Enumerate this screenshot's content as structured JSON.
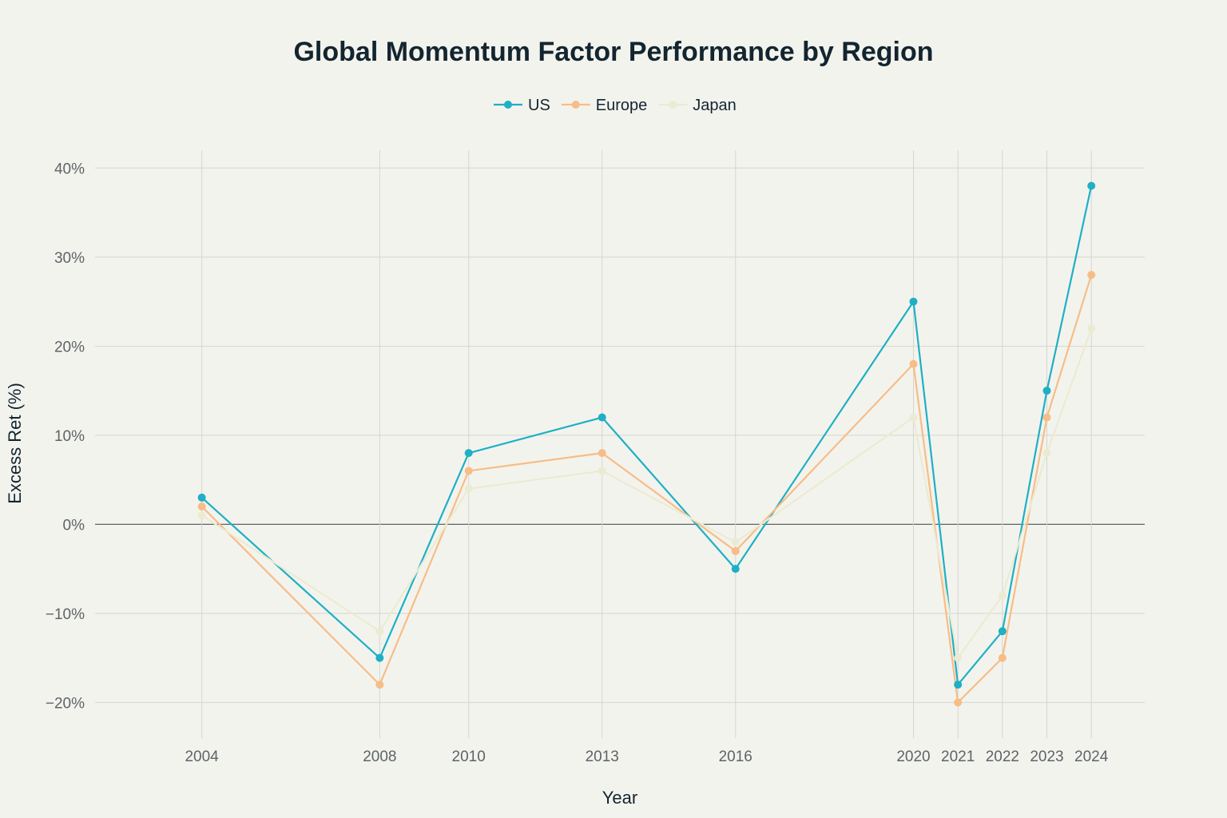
{
  "chart_data": {
    "type": "line",
    "title": "Global Momentum Factor Performance by Region",
    "xlabel": "Year",
    "ylabel": "Excess Ret (%)",
    "x": [
      2004,
      2008,
      2010,
      2013,
      2016,
      2020,
      2021,
      2022,
      2023,
      2024
    ],
    "x_tick_labels": [
      "2004",
      "2008",
      "2010",
      "2013",
      "2016",
      "2020",
      "2021",
      "2022",
      "2023",
      "2024"
    ],
    "xlim": [
      2001.6,
      2025.2
    ],
    "ylim": [
      -24,
      42
    ],
    "y_ticks": [
      -20,
      -10,
      0,
      10,
      20,
      30,
      40
    ],
    "y_tick_labels": [
      "−20%",
      "−10%",
      "0%",
      "10%",
      "20%",
      "30%",
      "40%"
    ],
    "grid": true,
    "legend_position": "top-center",
    "series": [
      {
        "name": "US",
        "color": "#1eb0c4",
        "values": [
          3,
          -15,
          8,
          12,
          -5,
          25,
          -18,
          -12,
          15,
          38
        ]
      },
      {
        "name": "Europe",
        "color": "#f7bd86",
        "values": [
          2,
          -18,
          6,
          8,
          -3,
          18,
          -20,
          -15,
          12,
          28
        ]
      },
      {
        "name": "Japan",
        "color": "#ebebd2",
        "values": [
          1,
          -12,
          4,
          6,
          -2,
          12,
          -15,
          -8,
          8,
          22
        ]
      }
    ]
  }
}
